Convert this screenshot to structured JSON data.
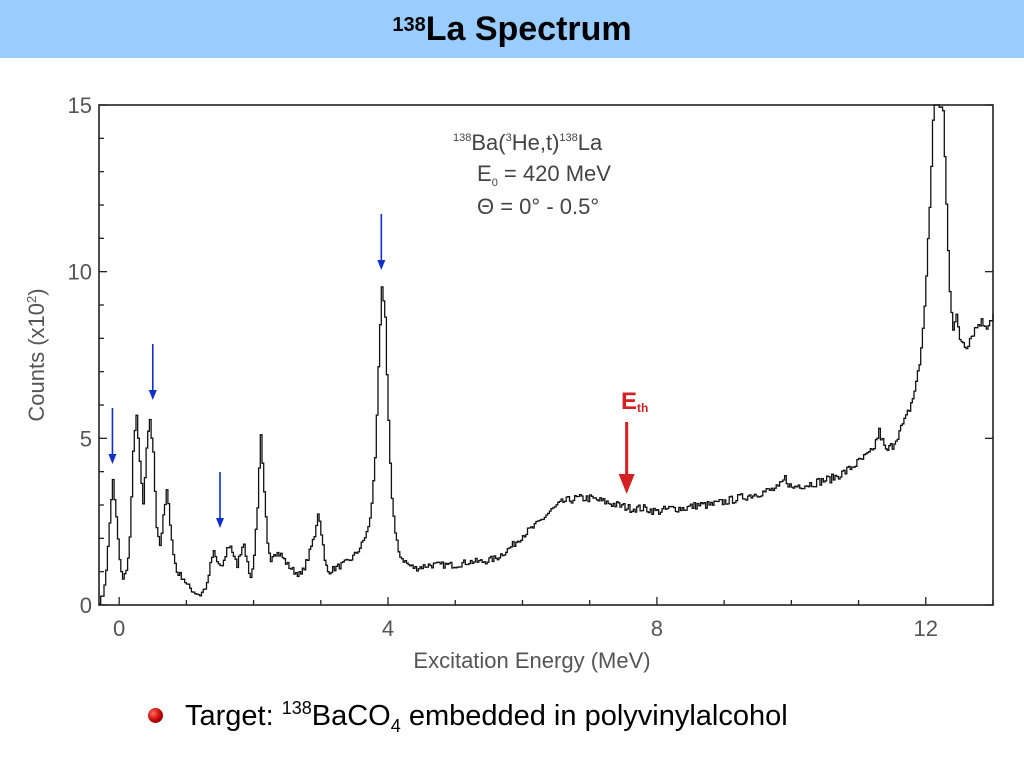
{
  "slide": {
    "title_sup": "138",
    "title_main": "La Spectrum",
    "bullet": {
      "prefix": "Target: ",
      "sup": "138",
      "mid": "BaCO",
      "sub": "4",
      "suffix": " embedded in polyvinylalcohol",
      "bullet_color": "#cc0000"
    },
    "title_bar_color": "#99ccff"
  },
  "chart_data": {
    "type": "line",
    "xlabel": "Excitation Energy (MeV)",
    "ylabel_main": "Counts (x10",
    "ylabel_sup": "2",
    "ylabel_end": ")",
    "xlim": [
      -0.3,
      13.0
    ],
    "ylim": [
      0,
      15
    ],
    "xticks": [
      0,
      4,
      8,
      12
    ],
    "yticks": [
      0,
      5,
      10,
      15
    ],
    "annotation": {
      "line1_sup1": "138",
      "line1_a": "Ba(",
      "line1_sup2": "3",
      "line1_b": "He,t)",
      "line1_sup3": "138",
      "line1_c": "La",
      "line2_a": "E",
      "line2_sub": "0",
      "line2_b": " = 420 MeV",
      "line3": "Θ = 0° - 0.5°"
    },
    "threshold_label": "E",
    "threshold_sub": "th",
    "threshold_x": 7.55,
    "threshold_color": "#d42020",
    "arrow_color": "#1030c8",
    "line_color": "#111111",
    "blue_arrows_x": [
      -0.1,
      0.5,
      1.5,
      3.9
    ],
    "x": [
      -0.3,
      -0.25,
      -0.2,
      -0.15,
      -0.1,
      -0.05,
      0.0,
      0.05,
      0.1,
      0.15,
      0.2,
      0.25,
      0.3,
      0.35,
      0.4,
      0.45,
      0.5,
      0.55,
      0.6,
      0.65,
      0.7,
      0.75,
      0.8,
      0.85,
      0.9,
      0.95,
      1.0,
      1.1,
      1.2,
      1.3,
      1.35,
      1.4,
      1.45,
      1.5,
      1.55,
      1.6,
      1.65,
      1.7,
      1.75,
      1.8,
      1.85,
      1.9,
      1.95,
      2.0,
      2.05,
      2.1,
      2.15,
      2.2,
      2.25,
      2.3,
      2.4,
      2.5,
      2.6,
      2.7,
      2.8,
      2.9,
      2.95,
      3.0,
      3.05,
      3.1,
      3.2,
      3.3,
      3.4,
      3.5,
      3.6,
      3.7,
      3.75,
      3.8,
      3.85,
      3.9,
      3.95,
      4.0,
      4.05,
      4.1,
      4.15,
      4.2,
      4.3,
      4.4,
      4.6,
      4.8,
      5.0,
      5.2,
      5.4,
      5.6,
      5.8,
      6.0,
      6.2,
      6.4,
      6.6,
      6.8,
      7.0,
      7.2,
      7.4,
      7.6,
      7.8,
      8.0,
      8.2,
      8.4,
      8.6,
      8.8,
      9.0,
      9.2,
      9.4,
      9.6,
      9.8,
      9.9,
      10.0,
      10.1,
      10.2,
      10.4,
      10.6,
      10.8,
      11.0,
      11.2,
      11.3,
      11.4,
      11.5,
      11.6,
      11.7,
      11.8,
      11.9,
      11.95,
      12.0,
      12.05,
      12.1,
      12.12,
      12.15,
      12.2,
      12.25,
      12.3,
      12.35,
      12.4,
      12.45,
      12.5,
      12.6,
      12.7,
      12.8,
      12.9,
      13.0
    ],
    "y": [
      0.1,
      0.3,
      1.0,
      2.5,
      3.7,
      2.6,
      1.3,
      0.8,
      1.0,
      2.0,
      4.5,
      5.8,
      4.2,
      3.0,
      4.6,
      5.6,
      4.5,
      2.4,
      1.8,
      2.6,
      3.4,
      2.5,
      1.5,
      1.0,
      0.9,
      0.8,
      0.6,
      0.4,
      0.3,
      0.6,
      1.2,
      1.6,
      1.3,
      1.1,
      1.3,
      1.7,
      1.8,
      1.4,
      1.2,
      1.6,
      1.9,
      1.2,
      0.8,
      1.5,
      3.0,
      5.0,
      3.3,
      1.8,
      1.4,
      1.6,
      1.5,
      1.2,
      1.0,
      0.9,
      1.4,
      2.1,
      2.8,
      2.2,
      1.3,
      1.0,
      1.1,
      1.2,
      1.3,
      1.5,
      1.8,
      2.3,
      3.0,
      4.5,
      7.0,
      9.5,
      8.5,
      5.5,
      3.2,
      2.1,
      1.6,
      1.4,
      1.2,
      1.1,
      1.2,
      1.2,
      1.2,
      1.3,
      1.3,
      1.4,
      1.7,
      2.1,
      2.4,
      2.8,
      3.1,
      3.2,
      3.2,
      3.1,
      3.0,
      2.9,
      2.9,
      2.8,
      2.9,
      2.9,
      3.0,
      3.0,
      3.1,
      3.2,
      3.3,
      3.4,
      3.5,
      3.8,
      3.5,
      3.6,
      3.6,
      3.7,
      3.8,
      4.0,
      4.3,
      4.6,
      5.2,
      4.6,
      4.8,
      5.2,
      5.6,
      6.2,
      7.2,
      8.3,
      9.8,
      12.0,
      14.5,
      15.0,
      15.0,
      15.0,
      14.8,
      12.0,
      9.5,
      8.3,
      8.6,
      8.0,
      7.8,
      8.2,
      8.5,
      8.4,
      8.7
    ]
  }
}
